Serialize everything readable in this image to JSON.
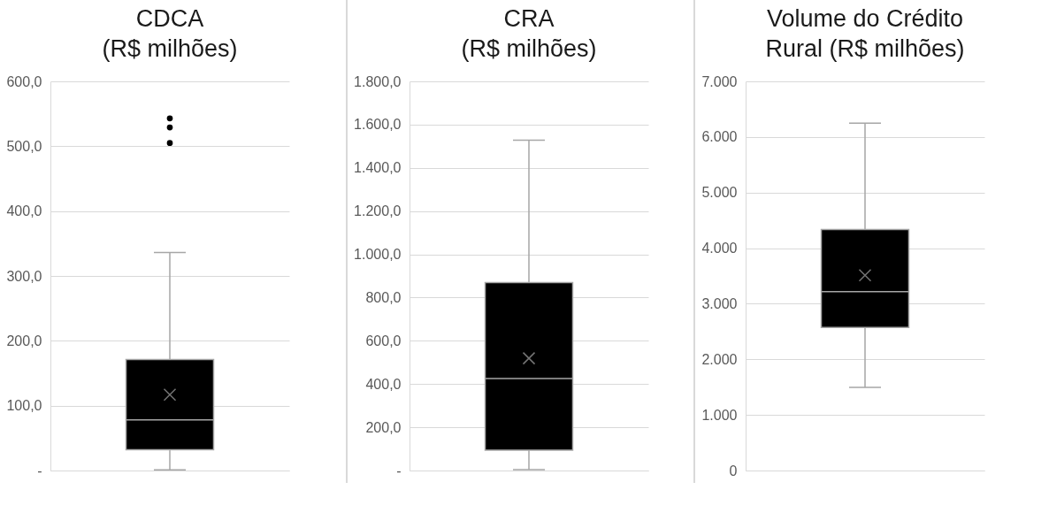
{
  "chart_data": [
    {
      "type": "box",
      "title": "CDCA\n(R$ milhões)",
      "categories": [
        null
      ],
      "color": "#000000",
      "boxes": [
        {
          "low": 1,
          "q1": 32,
          "median": 78,
          "q3": 171,
          "high": 336,
          "mean": 117,
          "outliers": [
            505,
            529,
            543
          ]
        }
      ],
      "ylim": [
        0,
        600
      ],
      "yticks": [
        {
          "value": 0,
          "label": "-"
        },
        {
          "value": 100,
          "label": "100,0"
        },
        {
          "value": 200,
          "label": "200,0"
        },
        {
          "value": 300,
          "label": "300,0"
        },
        {
          "value": 400,
          "label": "400,0"
        },
        {
          "value": 500,
          "label": "500,0"
        },
        {
          "value": 600,
          "label": "600,0"
        }
      ],
      "grid": "y"
    },
    {
      "type": "box",
      "title": "CRA\n(R$ milhões)",
      "categories": [
        null
      ],
      "color": "#000000",
      "boxes": [
        {
          "low": 4,
          "q1": 94,
          "median": 425,
          "q3": 869,
          "high": 1528,
          "mean": 519
        }
      ],
      "ylim": [
        0,
        1800
      ],
      "yticks": [
        {
          "value": 0,
          "label": "-"
        },
        {
          "value": 200,
          "label": "200,0"
        },
        {
          "value": 400,
          "label": "400,0"
        },
        {
          "value": 600,
          "label": "600,0"
        },
        {
          "value": 800,
          "label": "800,0"
        },
        {
          "value": 1000,
          "label": "1.000,0"
        },
        {
          "value": 1200,
          "label": "1.200,0"
        },
        {
          "value": 1400,
          "label": "1.400,0"
        },
        {
          "value": 1600,
          "label": "1.600,0"
        },
        {
          "value": 1800,
          "label": "1.800,0"
        }
      ],
      "grid": "y"
    },
    {
      "type": "box",
      "title": "Volume do Crédito\nRural (R$ milhões)",
      "categories": [
        null
      ],
      "color": "#000000",
      "boxes": [
        {
          "low": 1494,
          "q1": 2574,
          "median": 3218,
          "q3": 4335,
          "high": 6247,
          "mean": 3513
        }
      ],
      "ylim": [
        0,
        7000
      ],
      "yticks": [
        0,
        {
          "value": 1000,
          "label": "1.000"
        },
        {
          "value": 2000,
          "label": "2.000"
        },
        {
          "value": 3000,
          "label": "3.000"
        },
        {
          "value": 4000,
          "label": "4.000"
        },
        {
          "value": 5000,
          "label": "5.000"
        },
        {
          "value": 6000,
          "label": "6.000"
        },
        {
          "value": 7000,
          "label": "7.000"
        }
      ],
      "grid": "y"
    }
  ]
}
